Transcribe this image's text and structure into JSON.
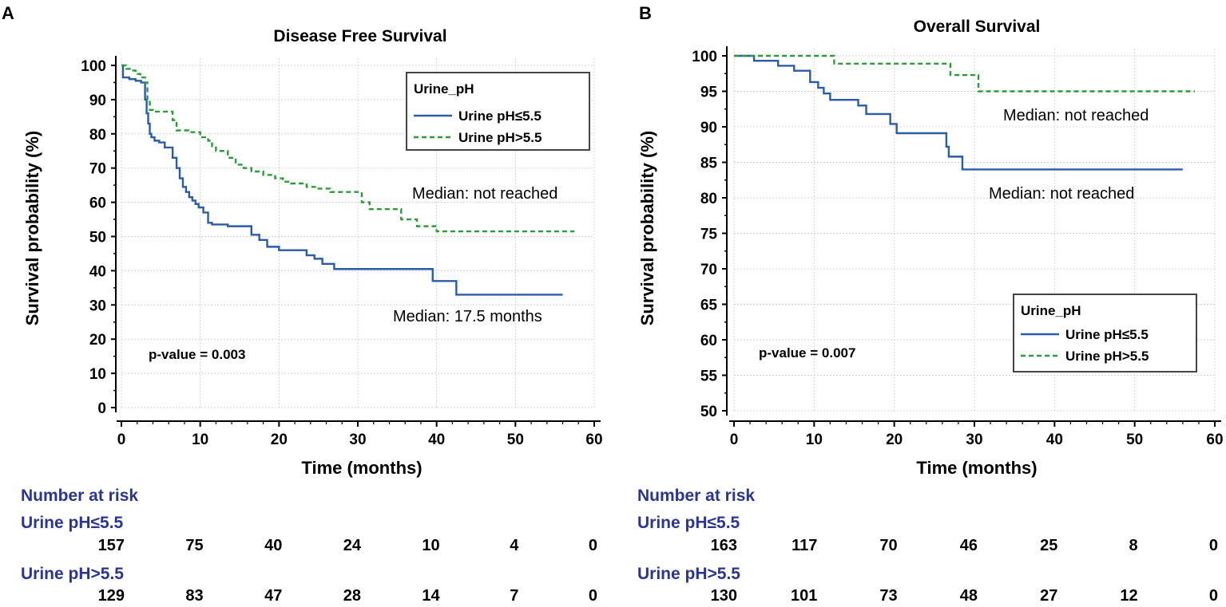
{
  "chart_data": [
    {
      "type": "line",
      "panel": "A",
      "title": "Disease Free Survival",
      "xlabel": "Time (months)",
      "ylabel": "Survival probability (%)",
      "xlim": [
        0,
        60
      ],
      "ylim": [
        0,
        100
      ],
      "xticks": [
        0,
        10,
        20,
        30,
        40,
        50,
        60
      ],
      "yticks": [
        0,
        10,
        20,
        30,
        40,
        50,
        60,
        70,
        80,
        90,
        100
      ],
      "grid": true,
      "legend": {
        "title": "Urine_pH",
        "position": "top-right",
        "entries": [
          "Urine pH≤5.5",
          "Urine pH>5.5"
        ]
      },
      "series": [
        {
          "name": "Urine pH≤5.5",
          "color": "#2a5ba8",
          "dash": "solid",
          "x": [
            0,
            0.2,
            1,
            1.8,
            2.5,
            3.0,
            3.2,
            3.4,
            3.6,
            3.8,
            4.2,
            4.8,
            5.5,
            6.5,
            7.0,
            7.4,
            7.8,
            8.2,
            8.6,
            9.0,
            9.4,
            9.8,
            10.4,
            11.0,
            11.5,
            12.0,
            13.5,
            16.5,
            17.5,
            18.5,
            20.0,
            23.5,
            24.5,
            25.5,
            27.0,
            39.5,
            42.5,
            56.0
          ],
          "y": [
            100,
            96.5,
            96,
            95.5,
            95,
            90,
            86,
            83,
            80,
            79,
            78,
            77.5,
            76,
            73,
            70,
            67,
            64.5,
            63,
            61.5,
            60.5,
            59.5,
            58.5,
            57,
            54,
            53.5,
            53.5,
            53,
            50.5,
            49,
            47,
            46,
            44.5,
            43.5,
            42,
            40.5,
            37,
            33,
            33
          ]
        },
        {
          "name": "Urine pH>5.5",
          "color": "#2e9a3c",
          "dash": "dashed",
          "x": [
            0,
            0.6,
            1.2,
            1.8,
            2.4,
            3.0,
            3.3,
            3.6,
            4.0,
            6.5,
            7.0,
            8.5,
            10.0,
            11.0,
            11.5,
            12.0,
            13.5,
            14.5,
            15.5,
            16.5,
            18.0,
            19.5,
            20.5,
            21.5,
            23.5,
            25.0,
            26.5,
            30.5,
            31.5,
            35.5,
            37.5,
            40.0,
            57.5
          ],
          "y": [
            100,
            99,
            98.5,
            97.5,
            96.5,
            95,
            90,
            87,
            86.5,
            84,
            81,
            80.5,
            79,
            78,
            76,
            75,
            73,
            71,
            70,
            69,
            68,
            67,
            66,
            65.5,
            64.5,
            64,
            63,
            60,
            58,
            55,
            53,
            51.5,
            51.5
          ]
        }
      ],
      "annotations": {
        "median_group2": "Median: not reached",
        "median_group1": "Median: 17.5 months",
        "p_value": "p-value = 0.003"
      },
      "risk_table": {
        "heading": "Number at risk",
        "times": [
          0,
          10,
          20,
          30,
          40,
          50,
          60
        ],
        "groups": [
          {
            "name": "Urine pH≤5.5",
            "values": [
              157,
              75,
              40,
              24,
              10,
              4,
              0
            ]
          },
          {
            "name": "Urine pH>5.5",
            "values": [
              129,
              83,
              47,
              28,
              14,
              7,
              0
            ]
          }
        ]
      }
    },
    {
      "type": "line",
      "panel": "B",
      "title": "Overall Survival",
      "xlabel": "Time (months)",
      "ylabel": "Survival probability (%)",
      "xlim": [
        0,
        60
      ],
      "ylim": [
        50,
        100
      ],
      "xticks": [
        0,
        10,
        20,
        30,
        40,
        50,
        60
      ],
      "yticks": [
        50,
        55,
        60,
        65,
        70,
        75,
        80,
        85,
        90,
        95,
        100
      ],
      "grid": true,
      "legend": {
        "title": "Urine_pH",
        "position": "bottom-right",
        "entries": [
          "Urine pH≤5.5",
          "Urine pH>5.5"
        ]
      },
      "series": [
        {
          "name": "Urine pH≤5.5",
          "color": "#2a5ba8",
          "dash": "solid",
          "x": [
            0,
            2.5,
            5.5,
            7.5,
            9.5,
            10.5,
            11.2,
            12.0,
            15.5,
            16.5,
            19.5,
            20.3,
            26.5,
            26.8,
            28.5,
            56.0
          ],
          "y": [
            100,
            99.3,
            98.6,
            97.9,
            96.3,
            95.5,
            94.7,
            93.8,
            93.0,
            91.8,
            90.4,
            89.1,
            87.2,
            85.8,
            84.0,
            84.0
          ]
        },
        {
          "name": "Urine pH>5.5",
          "color": "#2e9a3c",
          "dash": "dashed",
          "x": [
            0,
            12.5,
            27.0,
            30.5,
            57.5
          ],
          "y": [
            100,
            98.9,
            97.3,
            95.0,
            95.0
          ]
        }
      ],
      "annotations": {
        "median_group2": "Median: not reached",
        "median_group1": "Median: not reached",
        "p_value": "p-value = 0.007"
      },
      "risk_table": {
        "heading": "Number at risk",
        "times": [
          0,
          10,
          20,
          30,
          40,
          50,
          60
        ],
        "groups": [
          {
            "name": "Urine pH≤5.5",
            "values": [
              163,
              117,
              70,
              46,
              25,
              8,
              0
            ]
          },
          {
            "name": "Urine pH>5.5",
            "values": [
              130,
              101,
              73,
              48,
              27,
              12,
              0
            ]
          }
        ]
      }
    }
  ]
}
